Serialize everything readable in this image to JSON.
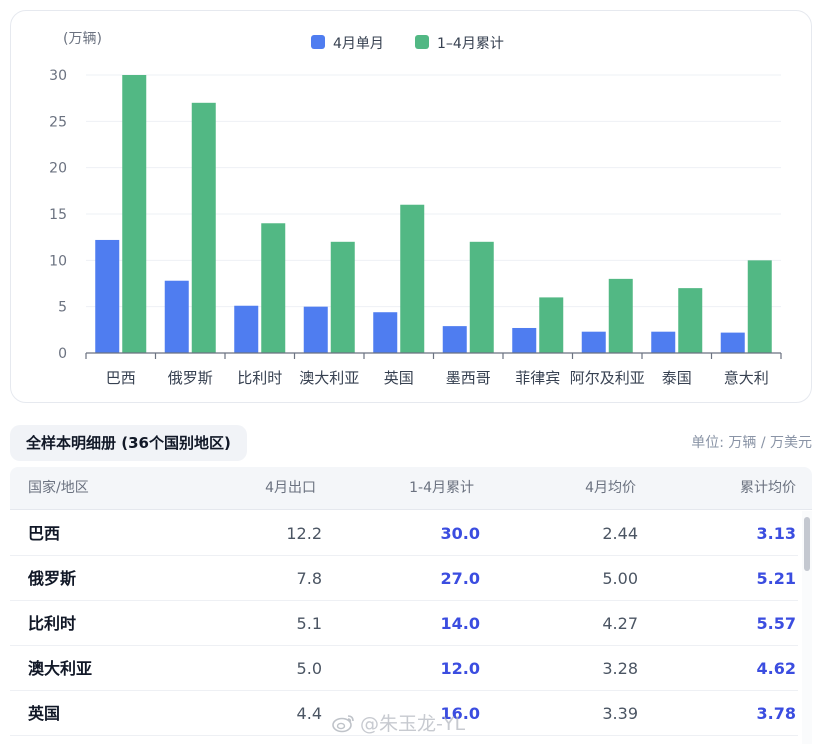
{
  "chart_data": {
    "type": "bar",
    "ylabel": "(万辆)",
    "ylim": [
      0,
      30
    ],
    "yticks": [
      0,
      5,
      10,
      15,
      20,
      25,
      30
    ],
    "grid": true,
    "legend_position": "top-center",
    "categories": [
      "巴西",
      "俄罗斯",
      "比利时",
      "澳大利亚",
      "英国",
      "墨西哥",
      "菲律宾",
      "阿尔及利亚",
      "泰国",
      "意大利"
    ],
    "series": [
      {
        "name": "4月单月",
        "color": "#4f7df0",
        "values": [
          12.2,
          7.8,
          5.1,
          5.0,
          4.4,
          2.9,
          2.7,
          2.3,
          2.3,
          2.2
        ]
      },
      {
        "name": "1–4月累计",
        "color": "#52b884",
        "values": [
          30.0,
          27.0,
          14.0,
          12.0,
          16.0,
          12.0,
          6.0,
          8.0,
          7.0,
          10.0
        ]
      }
    ]
  },
  "section": {
    "title": "全样本明细册 (36个国别地区)",
    "unit_note": "单位: 万辆 / 万美元"
  },
  "table": {
    "headers": [
      "国家/地区",
      "4月出口",
      "1-4月累计",
      "4月均价",
      "累计均价"
    ],
    "rows": [
      {
        "name": "巴西",
        "apr_export": "12.2",
        "ytd_total": "30.0",
        "apr_avg_price": "2.44",
        "ytd_avg_price": "3.13"
      },
      {
        "name": "俄罗斯",
        "apr_export": "7.8",
        "ytd_total": "27.0",
        "apr_avg_price": "5.00",
        "ytd_avg_price": "5.21"
      },
      {
        "name": "比利时",
        "apr_export": "5.1",
        "ytd_total": "14.0",
        "apr_avg_price": "4.27",
        "ytd_avg_price": "5.57"
      },
      {
        "name": "澳大利亚",
        "apr_export": "5.0",
        "ytd_total": "12.0",
        "apr_avg_price": "3.28",
        "ytd_avg_price": "4.62"
      },
      {
        "name": "英国",
        "apr_export": "4.4",
        "ytd_total": "16.0",
        "apr_avg_price": "3.39",
        "ytd_avg_price": "3.78"
      }
    ]
  },
  "watermark": {
    "text": "@朱玉龙-YL",
    "icon": "weibo-icon"
  }
}
